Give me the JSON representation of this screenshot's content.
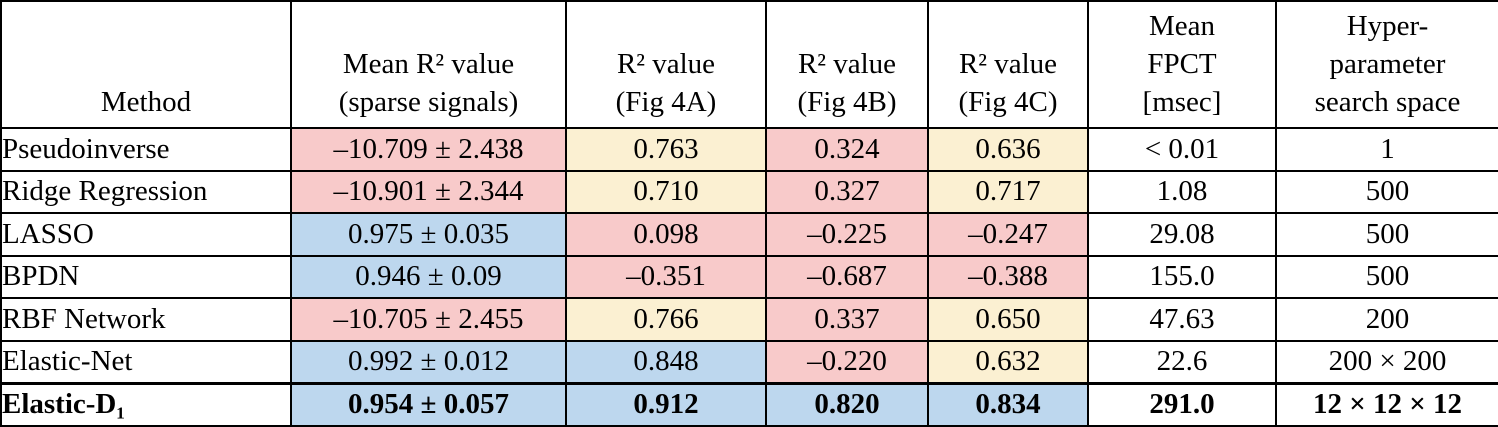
{
  "colors": {
    "pink": "#F8CACA",
    "yellow": "#FBF0D2",
    "blue": "#BDD7EE",
    "white": "#FFFFFF",
    "border": "#000000"
  },
  "table": {
    "headers": [
      "Method",
      "Mean R² value\n(sparse signals)",
      "R² value\n(Fig 4A)",
      "R² value\n(Fig 4B)",
      "R² value\n(Fig 4C)",
      "Mean\nFPCT\n[msec]",
      "Hyper-\nparameter\nsearch space"
    ],
    "rows": [
      {
        "method": "Pseudoinverse",
        "bold": false,
        "cells": [
          {
            "value": "–10.709 ± 2.438",
            "bg": "pink"
          },
          {
            "value": "0.763",
            "bg": "yellow"
          },
          {
            "value": "0.324",
            "bg": "pink"
          },
          {
            "value": "0.636",
            "bg": "yellow"
          },
          {
            "value": "< 0.01",
            "bg": "white"
          },
          {
            "value": "1",
            "bg": "white"
          }
        ]
      },
      {
        "method": "Ridge Regression",
        "bold": false,
        "cells": [
          {
            "value": "–10.901 ± 2.344",
            "bg": "pink"
          },
          {
            "value": "0.710",
            "bg": "yellow"
          },
          {
            "value": "0.327",
            "bg": "pink"
          },
          {
            "value": "0.717",
            "bg": "yellow"
          },
          {
            "value": "1.08",
            "bg": "white"
          },
          {
            "value": "500",
            "bg": "white"
          }
        ]
      },
      {
        "method": "LASSO",
        "bold": false,
        "cells": [
          {
            "value": "0.975 ± 0.035",
            "bg": "blue"
          },
          {
            "value": "0.098",
            "bg": "pink"
          },
          {
            "value": "–0.225",
            "bg": "pink"
          },
          {
            "value": "–0.247",
            "bg": "pink"
          },
          {
            "value": "29.08",
            "bg": "white"
          },
          {
            "value": "500",
            "bg": "white"
          }
        ]
      },
      {
        "method": "BPDN",
        "bold": false,
        "cells": [
          {
            "value": "0.946 ± 0.09",
            "bg": "blue"
          },
          {
            "value": "–0.351",
            "bg": "pink"
          },
          {
            "value": "–0.687",
            "bg": "pink"
          },
          {
            "value": "–0.388",
            "bg": "pink"
          },
          {
            "value": "155.0",
            "bg": "white"
          },
          {
            "value": "500",
            "bg": "white"
          }
        ]
      },
      {
        "method": "RBF Network",
        "bold": false,
        "cells": [
          {
            "value": "–10.705 ± 2.455",
            "bg": "pink"
          },
          {
            "value": "0.766",
            "bg": "yellow"
          },
          {
            "value": "0.337",
            "bg": "pink"
          },
          {
            "value": "0.650",
            "bg": "yellow"
          },
          {
            "value": "47.63",
            "bg": "white"
          },
          {
            "value": "200",
            "bg": "white"
          }
        ]
      },
      {
        "method": "Elastic-Net",
        "bold": false,
        "cells": [
          {
            "value": "0.992 ± 0.012",
            "bg": "blue"
          },
          {
            "value": "0.848",
            "bg": "blue"
          },
          {
            "value": "–0.220",
            "bg": "pink"
          },
          {
            "value": "0.632",
            "bg": "yellow"
          },
          {
            "value": "22.6",
            "bg": "white"
          },
          {
            "value": "200 × 200",
            "bg": "white"
          }
        ]
      },
      {
        "method": "Elastic-D₁",
        "bold": true,
        "cells": [
          {
            "value": "0.954 ± 0.057",
            "bg": "blue"
          },
          {
            "value": "0.912",
            "bg": "blue"
          },
          {
            "value": "0.820",
            "bg": "blue"
          },
          {
            "value": "0.834",
            "bg": "blue"
          },
          {
            "value": "291.0",
            "bg": "white"
          },
          {
            "value": "12 × 12 × 12",
            "bg": "white"
          }
        ]
      }
    ]
  }
}
